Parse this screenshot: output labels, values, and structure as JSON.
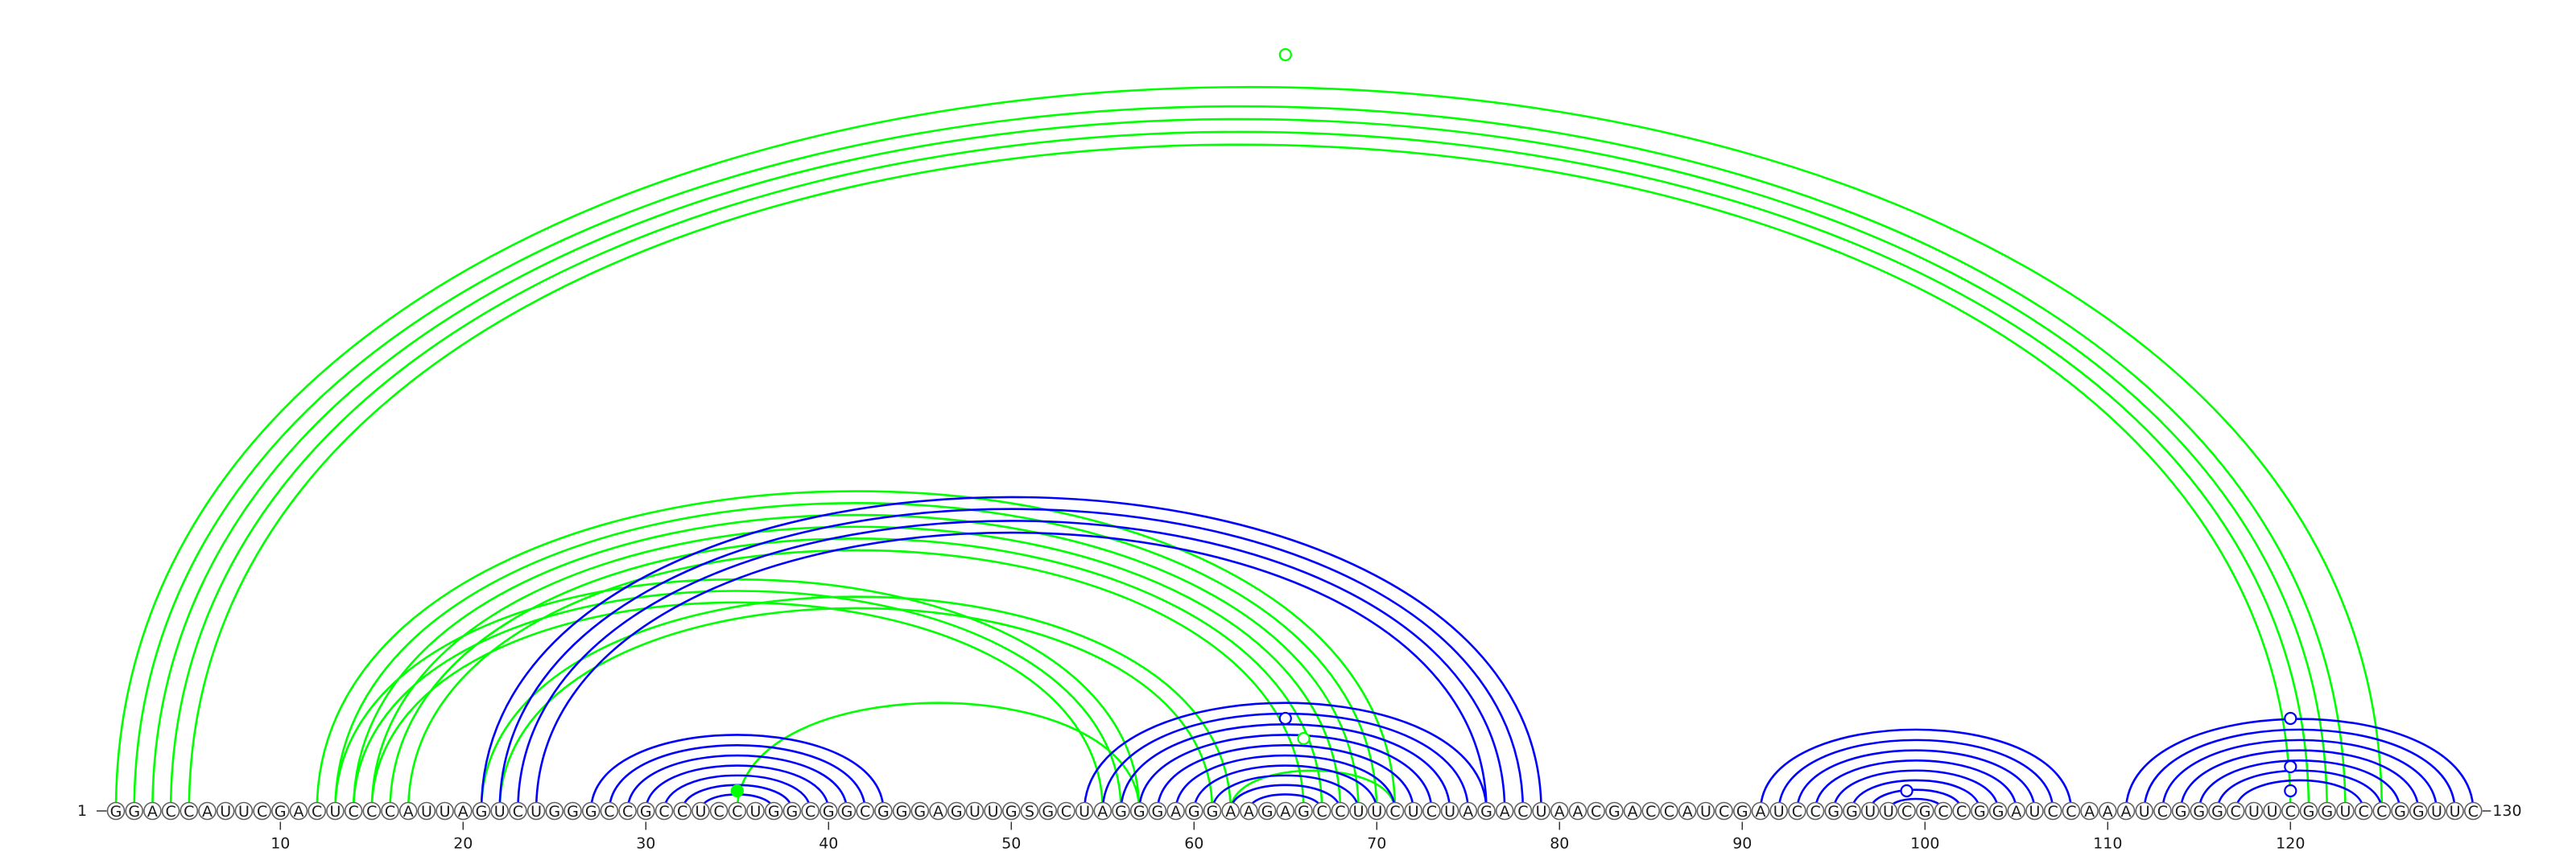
{
  "sequence": "GGACCAUUCGACUCCCAUUAGUCUGGGCCGCCUCCUGGCGGCGGGAGUUGSGCUAGGGAGGAAGAGCCUUCUCUAGACUAACGACCAUCGAUCCGGUUCGCCGGAUCCAAAUCGGGCUUCGGUCCGGUUC",
  "start_label": "1",
  "end_label": "130",
  "ticks": [
    "10",
    "20",
    "30",
    "40",
    "50",
    "60",
    "70",
    "80",
    "90",
    "100",
    "110",
    "120"
  ],
  "colors": {
    "blue": "#0000ff",
    "green": "#00ff00"
  },
  "arc_groups": [
    {
      "color": "green",
      "i_start": 2,
      "j_start": 123,
      "count": 4
    },
    {
      "color": "green",
      "i_start": 1,
      "j_start": 125,
      "count": 1
    },
    {
      "color": "green",
      "i_start": 12,
      "j_start": 71,
      "count": 6
    },
    {
      "color": "green",
      "i_start": 13,
      "j_start": 57,
      "count": 3
    },
    {
      "color": "green",
      "i_start": 21,
      "j_start": 62,
      "count": 2
    },
    {
      "color": "green",
      "i_start": 35,
      "j_start": 57,
      "count": 1
    },
    {
      "color": "green",
      "i_start": 62,
      "j_start": 71,
      "count": 1
    },
    {
      "color": "blue",
      "i_start": 21,
      "j_start": 79,
      "count": 4
    },
    {
      "color": "blue",
      "i_start": 27,
      "j_start": 43,
      "count": 7
    },
    {
      "color": "blue",
      "i_start": 54,
      "j_start": 76,
      "count": 10
    },
    {
      "color": "blue",
      "i_start": 91,
      "j_start": 108,
      "count": 8
    },
    {
      "color": "blue",
      "i_start": 111,
      "j_start": 130,
      "count": 7
    }
  ],
  "markers": [
    {
      "color": "green",
      "position": 65,
      "height_frac": 0.94,
      "filled": false
    },
    {
      "color": "green",
      "position": 35,
      "height_frac": 0.025,
      "filled": true
    },
    {
      "color": "green",
      "position": 66,
      "height_frac": 0.09,
      "filled": false
    },
    {
      "color": "blue",
      "position": 65,
      "height_frac": 0.115,
      "filled": false
    },
    {
      "color": "blue",
      "position": 99,
      "height_frac": 0.025,
      "filled": false
    },
    {
      "color": "blue",
      "position": 120,
      "height_frac": 0.115,
      "filled": false
    },
    {
      "color": "blue",
      "position": 120,
      "height_frac": 0.055,
      "filled": false
    },
    {
      "color": "blue",
      "position": 120,
      "height_frac": 0.025,
      "filled": false
    }
  ]
}
